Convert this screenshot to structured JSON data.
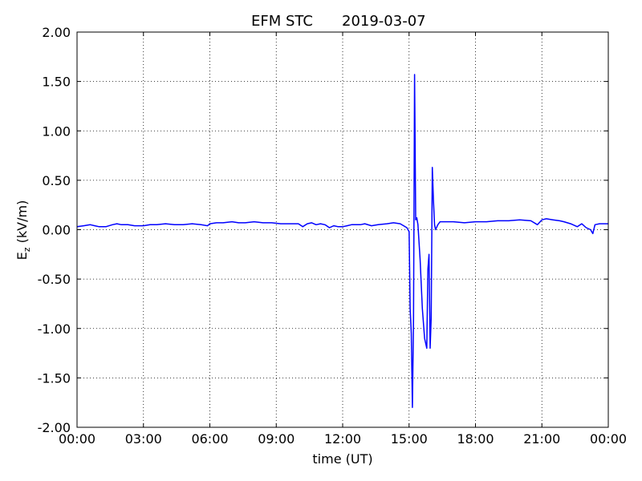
{
  "chart_data": {
    "type": "line",
    "title": "EFM STC",
    "date": "2019-03-07",
    "xlabel": "time (UT)",
    "ylabel": "E",
    "ylabel_subscript": "z",
    "ylabel_unit": " (kV/m)",
    "xlim": [
      0,
      24
    ],
    "ylim": [
      -2.0,
      2.0
    ],
    "grid": true,
    "x_ticks": [
      {
        "value": 0,
        "label": "00:00"
      },
      {
        "value": 3,
        "label": "03:00"
      },
      {
        "value": 6,
        "label": "06:00"
      },
      {
        "value": 9,
        "label": "09:00"
      },
      {
        "value": 12,
        "label": "12:00"
      },
      {
        "value": 15,
        "label": "15:00"
      },
      {
        "value": 18,
        "label": "18:00"
      },
      {
        "value": 21,
        "label": "21:00"
      },
      {
        "value": 24,
        "label": "00:00"
      }
    ],
    "y_ticks": [
      {
        "value": 2.0,
        "label": "2.00"
      },
      {
        "value": 1.5,
        "label": "1.50"
      },
      {
        "value": 1.0,
        "label": "1.00"
      },
      {
        "value": 0.5,
        "label": "0.50"
      },
      {
        "value": 0.0,
        "label": "0.00"
      },
      {
        "value": -0.5,
        "label": "-0.50"
      },
      {
        "value": -1.0,
        "label": "-1.00"
      },
      {
        "value": -1.5,
        "label": "-1.50"
      },
      {
        "value": -2.0,
        "label": "-2.00"
      }
    ],
    "series": [
      {
        "color": "#0000ff",
        "x": [
          0,
          0.3,
          0.6,
          0.8,
          1.0,
          1.3,
          1.6,
          1.8,
          2.0,
          2.3,
          2.6,
          3.0,
          3.3,
          3.6,
          4.0,
          4.4,
          4.8,
          5.2,
          5.6,
          5.9,
          6.0,
          6.3,
          6.6,
          7.0,
          7.3,
          7.6,
          8.0,
          8.4,
          8.8,
          9.2,
          9.6,
          10.0,
          10.2,
          10.4,
          10.6,
          10.8,
          11.0,
          11.2,
          11.4,
          11.6,
          11.8,
          12.0,
          12.2,
          12.4,
          12.6,
          12.8,
          13.0,
          13.3,
          13.6,
          14.0,
          14.3,
          14.6,
          14.9,
          15.0,
          15.05,
          15.1,
          15.15,
          15.2,
          15.25,
          15.3,
          15.35,
          15.4,
          15.5,
          15.6,
          15.7,
          15.8,
          15.85,
          15.9,
          15.95,
          16.0,
          16.05,
          16.1,
          16.15,
          16.2,
          16.3,
          16.4,
          16.6,
          17.0,
          17.5,
          18.0,
          18.5,
          19.0,
          19.5,
          20.0,
          20.5,
          20.8,
          21.0,
          21.2,
          21.5,
          21.8,
          22.0,
          22.3,
          22.6,
          22.8,
          23.0,
          23.2,
          23.3,
          23.4,
          23.6,
          24.0
        ],
        "y": [
          0.03,
          0.04,
          0.05,
          0.04,
          0.03,
          0.03,
          0.05,
          0.06,
          0.05,
          0.05,
          0.04,
          0.04,
          0.05,
          0.05,
          0.06,
          0.05,
          0.05,
          0.06,
          0.05,
          0.04,
          0.06,
          0.07,
          0.07,
          0.08,
          0.07,
          0.07,
          0.08,
          0.07,
          0.07,
          0.06,
          0.06,
          0.06,
          0.03,
          0.06,
          0.07,
          0.05,
          0.06,
          0.05,
          0.02,
          0.04,
          0.03,
          0.03,
          0.04,
          0.05,
          0.05,
          0.05,
          0.06,
          0.04,
          0.05,
          0.06,
          0.07,
          0.06,
          0.02,
          -0.02,
          -0.8,
          -1.05,
          -1.8,
          -0.9,
          1.57,
          0.1,
          0.12,
          0.05,
          -0.3,
          -0.8,
          -1.1,
          -1.2,
          -0.4,
          -0.25,
          -1.2,
          -0.9,
          0.63,
          0.3,
          0.05,
          0.0,
          0.05,
          0.08,
          0.08,
          0.08,
          0.07,
          0.08,
          0.08,
          0.09,
          0.09,
          0.1,
          0.09,
          0.05,
          0.1,
          0.11,
          0.1,
          0.09,
          0.08,
          0.06,
          0.03,
          0.06,
          0.02,
          0.0,
          -0.04,
          0.05,
          0.06,
          0.06
        ]
      }
    ]
  }
}
